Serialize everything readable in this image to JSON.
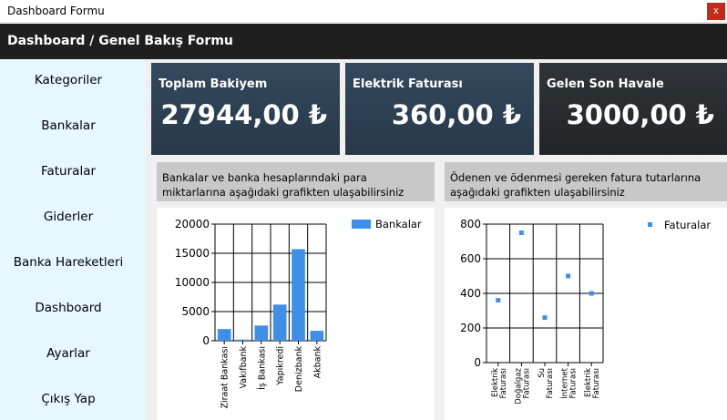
{
  "window": {
    "title": "Dashboard Formu",
    "close_glyph": "x"
  },
  "header": {
    "title": "Dashboard / Genel Bakış Formu"
  },
  "sidebar": {
    "items": [
      {
        "label": "Kategoriler"
      },
      {
        "label": "Bankalar"
      },
      {
        "label": "Faturalar"
      },
      {
        "label": "Giderler"
      },
      {
        "label": "Banka Hareketleri"
      },
      {
        "label": "Dashboard"
      },
      {
        "label": "Ayarlar"
      },
      {
        "label": "Çıkış Yap"
      }
    ]
  },
  "cards": [
    {
      "label": "Toplam Bakiyem",
      "value": "27944,00 ₺"
    },
    {
      "label": "Elektrik Faturası",
      "value": "360,00 ₺"
    },
    {
      "label": "Gelen Son Havale",
      "value": "3000,00 ₺"
    }
  ],
  "panels": {
    "banks_caption": "Bankalar ve banka hesaplarındaki para miktarlarına aşağıdaki grafikten ulaşabilirsiniz",
    "bills_caption": "Ödenen ve ödenmesi gereken fatura tutarlarına aşağıdaki grafikten ulaşabilirsiniz"
  },
  "colors": {
    "accent": "#3d8fe8",
    "card_blue": "#2e4053",
    "card_dark": "#26292c"
  },
  "chart_data": [
    {
      "type": "bar",
      "categories": [
        "Ziraat Bankası",
        "Vakıfbank",
        "İş Bankası",
        "Yapıkredi",
        "Denizbank",
        "Akbank"
      ],
      "series": [
        {
          "name": "Bankalar",
          "values": [
            2000,
            200,
            2600,
            6200,
            15700,
            1700
          ]
        }
      ],
      "ylim": [
        0,
        20000
      ],
      "yticks": [
        0,
        5000,
        10000,
        15000,
        20000
      ],
      "grid": true,
      "legend": "top-right"
    },
    {
      "type": "scatter",
      "categories": [
        "Elektrik Faturası",
        "Doğalgaz Faturası",
        "Su Faturası",
        "İnternet Faturası",
        "Elektrik Faturası"
      ],
      "category_lines": [
        [
          "Elektrik",
          "Faturası"
        ],
        [
          "Doğalgaz",
          "Faturası"
        ],
        [
          "Su",
          "Faturası"
        ],
        [
          "İnternet",
          "Faturası"
        ],
        [
          "Elektrik",
          "Faturası"
        ]
      ],
      "series": [
        {
          "name": "Faturalar",
          "values": [
            360,
            750,
            260,
            500,
            400
          ]
        }
      ],
      "ylim": [
        0,
        800
      ],
      "yticks": [
        0,
        200,
        400,
        600,
        800
      ],
      "grid": true,
      "legend": "top-right"
    }
  ]
}
